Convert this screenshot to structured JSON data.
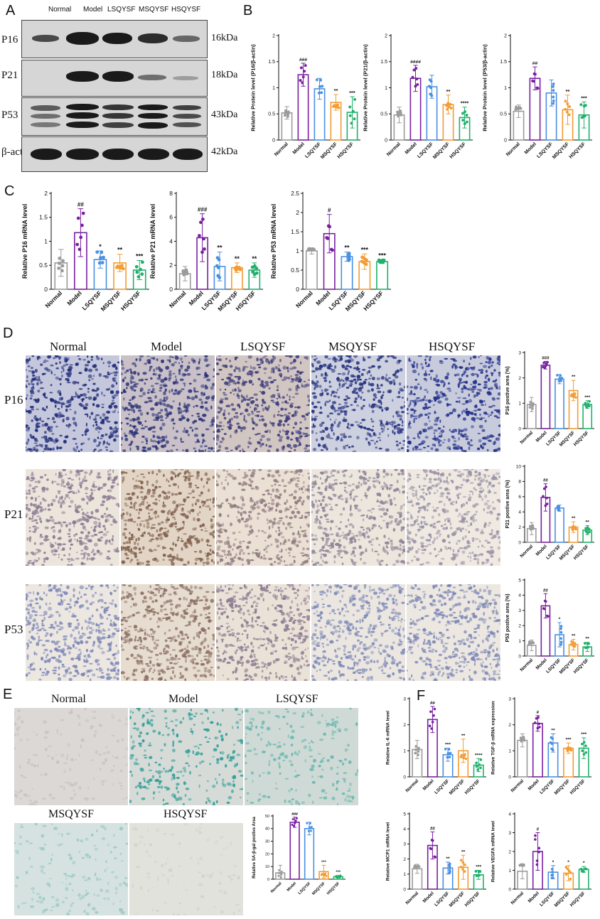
{
  "panel_letters": {
    "a": "A",
    "b": "B",
    "c": "C",
    "d": "D",
    "e": "E",
    "f": "F"
  },
  "groups": [
    "Normal",
    "Model",
    "LSQYSF",
    "MSQYSF",
    "HSQYSF"
  ],
  "colors": {
    "Normal": "#9b9b9b",
    "Model": "#7a1fa2",
    "LSQYSF": "#4a90e2",
    "MSQYSF": "#f39c32",
    "HSQYSF": "#20b06b"
  },
  "western_blot": {
    "lanes": [
      "Normal",
      "Model",
      "LSQYSF",
      "MSQYSF",
      "HSQYSF"
    ],
    "rows": [
      {
        "label": "P16",
        "kda": "16kDa"
      },
      {
        "label": "P21",
        "kda": "18kDa"
      },
      {
        "label": "P53",
        "kda": "43kDa"
      },
      {
        "label": "β-actin",
        "kda": "42kDa"
      }
    ]
  },
  "ihc": {
    "columns": [
      "Normal",
      "Model",
      "LSQYSF",
      "MSQYSF",
      "HSQYSF"
    ],
    "rows": [
      "P16",
      "P21",
      "P53"
    ]
  },
  "sa_bgal": {
    "titles": [
      "Normal",
      "Model",
      "LSQYSF",
      "MSQYSF",
      "HSQYSF"
    ]
  },
  "chart_data": [
    {
      "id": "b1",
      "type": "bar",
      "ylabel": "Relative Protein level (P16/β-actin)",
      "ylim": [
        0,
        2.0
      ],
      "yticks": [
        0,
        0.5,
        1.0,
        1.5,
        2.0
      ],
      "categories": [
        "Normal",
        "Model",
        "LSQYSF",
        "MSQYSF",
        "HSQYSF"
      ],
      "values": [
        0.52,
        1.25,
        0.98,
        0.72,
        0.53
      ],
      "errors": [
        0.12,
        0.22,
        0.2,
        0.15,
        0.3
      ],
      "labels": [
        "",
        "###",
        "",
        "**",
        "***"
      ]
    },
    {
      "id": "b2",
      "type": "bar",
      "ylabel": "Relative Protein level (P21/β-actin)",
      "ylim": [
        0,
        2.0
      ],
      "yticks": [
        0,
        0.5,
        1.0,
        1.5,
        2.0
      ],
      "categories": [
        "Normal",
        "Model",
        "LSQYSF",
        "MSQYSF",
        "HSQYSF"
      ],
      "values": [
        0.48,
        1.18,
        1.02,
        0.68,
        0.43
      ],
      "errors": [
        0.15,
        0.25,
        0.22,
        0.18,
        0.2
      ],
      "labels": [
        "",
        "####",
        "",
        "**",
        "****"
      ]
    },
    {
      "id": "b3",
      "type": "bar",
      "ylabel": "Relative Protein level (P53/β-actin)",
      "ylim": [
        0,
        2.0
      ],
      "yticks": [
        0,
        0.5,
        1.0,
        1.5,
        2.0
      ],
      "categories": [
        "Normal",
        "Model",
        "LSQYSF",
        "MSQYSF",
        "HSQYSF"
      ],
      "values": [
        0.55,
        1.18,
        0.9,
        0.58,
        0.48
      ],
      "errors": [
        0.12,
        0.22,
        0.25,
        0.28,
        0.25
      ],
      "labels": [
        "",
        "##",
        "",
        "**",
        "***"
      ]
    },
    {
      "id": "c1",
      "type": "bar",
      "ylabel": "Relative P16 mRNA level",
      "ylim": [
        0,
        2.0
      ],
      "yticks": [
        0.0,
        0.5,
        1.0,
        1.5,
        2.0
      ],
      "categories": [
        "Normal",
        "Model",
        "LSQYSF",
        "MSQYSF",
        "HSQYSF"
      ],
      "values": [
        0.55,
        1.18,
        0.62,
        0.55,
        0.4
      ],
      "errors": [
        0.28,
        0.5,
        0.18,
        0.18,
        0.2
      ],
      "labels": [
        "",
        "##",
        "*",
        "**",
        "***"
      ]
    },
    {
      "id": "c2",
      "type": "bar",
      "ylabel": "Relative P21 mRNA level",
      "ylim": [
        0,
        8
      ],
      "yticks": [
        0,
        2,
        4,
        6,
        8
      ],
      "categories": [
        "Normal",
        "Model",
        "LSQYSF",
        "MSQYSF",
        "HSQYSF"
      ],
      "values": [
        1.3,
        4.3,
        1.9,
        1.8,
        1.6
      ],
      "errors": [
        0.6,
        2.0,
        1.2,
        0.4,
        0.6
      ],
      "labels": [
        "",
        "###",
        "**",
        "**",
        "**"
      ]
    },
    {
      "id": "c3",
      "type": "bar",
      "ylabel": "Relative P53 mRNA level",
      "ylim": [
        0,
        2.5
      ],
      "yticks": [
        0.0,
        0.5,
        1.0,
        1.5,
        2.0,
        2.5
      ],
      "categories": [
        "Normal",
        "Model",
        "LSQYSF",
        "MSQYSF",
        "HSQYSF"
      ],
      "values": [
        1.0,
        1.45,
        0.85,
        0.72,
        0.72
      ],
      "errors": [
        0.08,
        0.5,
        0.12,
        0.2,
        0.05
      ],
      "labels": [
        "",
        "#",
        "**",
        "***",
        "***"
      ]
    },
    {
      "id": "d1",
      "type": "bar",
      "ylabel": "P16 postive area (%)",
      "ylim": [
        0,
        3
      ],
      "yticks": [
        0,
        1,
        2,
        3
      ],
      "categories": [
        "Normal",
        "Model",
        "LSQYSF",
        "MSQYSF",
        "HSQYSF"
      ],
      "values": [
        0.95,
        2.5,
        1.95,
        1.5,
        0.95
      ],
      "errors": [
        0.28,
        0.15,
        0.18,
        0.4,
        0.15
      ],
      "labels": [
        "",
        "###",
        "",
        "**",
        "***"
      ]
    },
    {
      "id": "d2",
      "type": "bar",
      "ylabel": "P21 postive area (%)",
      "ylim": [
        0,
        10
      ],
      "yticks": [
        0,
        2,
        4,
        6,
        8,
        10
      ],
      "categories": [
        "Normal",
        "Model",
        "LSQYSF",
        "MSQYSF",
        "HSQYSF"
      ],
      "values": [
        1.8,
        5.9,
        4.5,
        2.0,
        1.6
      ],
      "errors": [
        0.8,
        1.8,
        0.4,
        0.7,
        0.6
      ],
      "labels": [
        "",
        "##",
        "",
        "**",
        "**"
      ]
    },
    {
      "id": "d3",
      "type": "bar",
      "ylabel": "P53 postive area (%)",
      "ylim": [
        0,
        5
      ],
      "yticks": [
        0,
        1,
        2,
        3,
        4,
        5
      ],
      "categories": [
        "Normal",
        "Model",
        "LSQYSF",
        "MSQYSF",
        "HSQYSF"
      ],
      "values": [
        0.7,
        3.3,
        1.4,
        0.75,
        0.6
      ],
      "errors": [
        0.35,
        0.8,
        0.8,
        0.35,
        0.3
      ],
      "labels": [
        "",
        "##",
        "*",
        "**",
        "**"
      ]
    },
    {
      "id": "e1",
      "type": "bar",
      "ylabel": "Relative SA-β-gal postive Area",
      "ylim": [
        0,
        50
      ],
      "yticks": [
        0,
        10,
        20,
        30,
        40,
        50
      ],
      "categories": [
        "Normal",
        "Model",
        "LSQYSF",
        "MSQYSF",
        "HSQYSF"
      ],
      "values": [
        5,
        45,
        40,
        6,
        2
      ],
      "errors": [
        6,
        4,
        5,
        5,
        1
      ],
      "labels": [
        "",
        "###",
        "",
        "***",
        "***"
      ]
    },
    {
      "id": "f1",
      "type": "bar",
      "ylabel": "Relative IL-6 mRNA level",
      "ylim": [
        0,
        3
      ],
      "yticks": [
        0,
        1,
        2,
        3
      ],
      "categories": [
        "Normal",
        "Model",
        "LSQYSF",
        "MSQYSF",
        "HSQYSF"
      ],
      "values": [
        1.05,
        2.2,
        0.85,
        1.0,
        0.45
      ],
      "errors": [
        0.35,
        0.5,
        0.25,
        0.45,
        0.25
      ],
      "labels": [
        "",
        "##",
        "***",
        "**",
        "****"
      ]
    },
    {
      "id": "f2",
      "type": "bar",
      "ylabel": "Relative TGF-β mRNA expression",
      "ylim": [
        0,
        3
      ],
      "yticks": [
        0,
        1,
        2,
        3
      ],
      "categories": [
        "Normal",
        "Model",
        "LSQYSF",
        "MSQYSF",
        "HSQYSF"
      ],
      "values": [
        1.4,
        2.05,
        1.3,
        1.1,
        1.1
      ],
      "errors": [
        0.25,
        0.3,
        0.35,
        0.2,
        0.4
      ],
      "labels": [
        "",
        "#",
        "**",
        "***",
        "***"
      ]
    },
    {
      "id": "f3",
      "type": "bar",
      "ylabel": "Relative MCP1 mRNA level",
      "ylim": [
        0,
        5
      ],
      "yticks": [
        0,
        1,
        2,
        3,
        4,
        5
      ],
      "categories": [
        "Normal",
        "Model",
        "LSQYSF",
        "MSQYSF",
        "HSQYSF"
      ],
      "values": [
        1.35,
        2.9,
        1.4,
        1.45,
        0.95
      ],
      "errors": [
        0.3,
        0.9,
        0.4,
        0.8,
        0.3
      ],
      "labels": [
        "",
        "##",
        "**",
        "**",
        "***"
      ]
    },
    {
      "id": "f4",
      "type": "bar",
      "ylabel": "Relative VEGFA mRNA level",
      "ylim": [
        0,
        4
      ],
      "yticks": [
        0,
        1,
        2,
        3,
        4
      ],
      "categories": [
        "Normal",
        "Model",
        "LSQYSF",
        "MSQYSF",
        "HSQYSF"
      ],
      "values": [
        0.95,
        2.0,
        0.9,
        0.85,
        1.05
      ],
      "errors": [
        0.4,
        1.0,
        0.35,
        0.4,
        0.15
      ],
      "labels": [
        "",
        "#",
        "*",
        "*",
        "*"
      ]
    }
  ]
}
